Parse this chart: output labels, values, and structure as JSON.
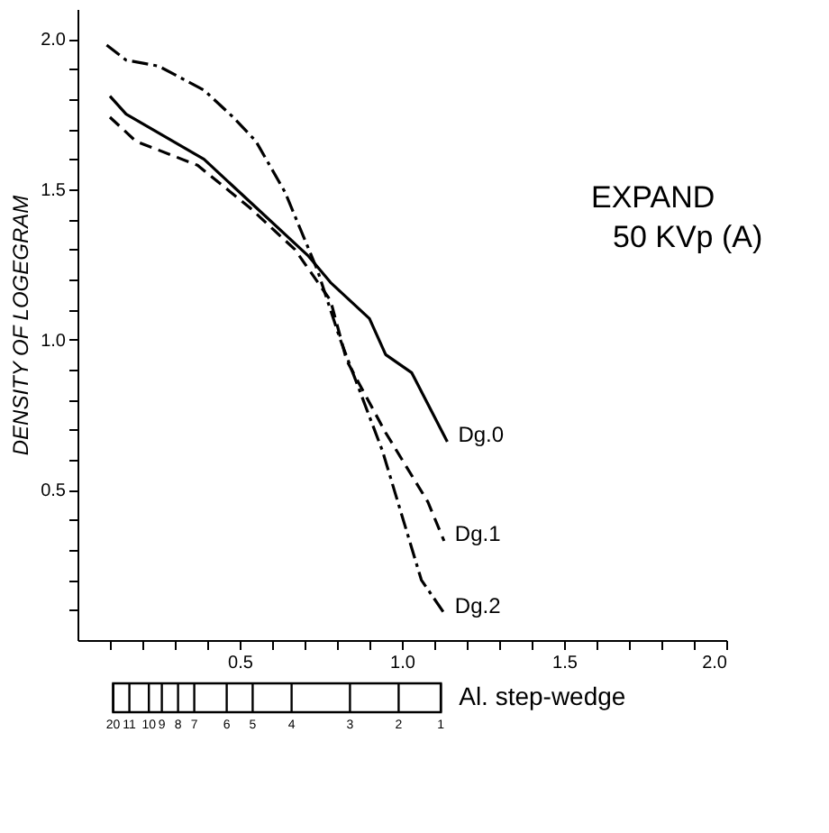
{
  "chart_data": {
    "type": "line",
    "ylabel": "DENSITY OF LOGEGRAM",
    "annotations": [
      "EXPAND",
      "50 KVp (A)",
      "Al. step-wedge",
      "20",
      "11",
      "10",
      "9",
      "8",
      "7",
      "6",
      "5",
      "4",
      "3",
      "2",
      "1"
    ],
    "xlim": [
      0,
      2.0
    ],
    "ylim": [
      0,
      2.1
    ],
    "xticks": [
      {
        "value": 0.1,
        "label": null
      },
      {
        "value": 0.2,
        "label": null
      },
      {
        "value": 0.3,
        "label": null
      },
      {
        "value": 0.4,
        "label": null
      },
      0.5,
      {
        "value": 0.6,
        "label": null
      },
      {
        "value": 0.7,
        "label": null
      },
      {
        "value": 0.8,
        "label": null
      },
      {
        "value": 0.9,
        "label": null
      },
      {
        "value": 1.0,
        "label": "1.0"
      },
      {
        "value": 1.1,
        "label": null
      },
      {
        "value": 1.2,
        "label": null
      },
      {
        "value": 1.3,
        "label": null
      },
      {
        "value": 1.4,
        "label": null
      },
      1.5,
      {
        "value": 1.6,
        "label": null
      },
      {
        "value": 1.7,
        "label": null
      },
      {
        "value": 1.8,
        "label": null
      },
      {
        "value": 1.9,
        "label": null
      },
      {
        "value": 2.0,
        "label": "2.0"
      }
    ],
    "yticks": [
      {
        "value": 0.1,
        "label": null
      },
      {
        "value": 0.2,
        "label": null
      },
      {
        "value": 0.3,
        "label": null
      },
      {
        "value": 0.4,
        "label": null
      },
      0.5,
      {
        "value": 0.6,
        "label": null
      },
      {
        "value": 0.7,
        "label": null
      },
      {
        "value": 0.8,
        "label": null
      },
      {
        "value": 0.9,
        "label": null
      },
      {
        "value": 1.0,
        "label": "1.0"
      },
      {
        "value": 1.1,
        "label": null
      },
      {
        "value": 1.2,
        "label": null
      },
      {
        "value": 1.3,
        "label": null
      },
      {
        "value": 1.4,
        "label": null
      },
      1.5,
      {
        "value": 1.6,
        "label": null
      },
      {
        "value": 1.7,
        "label": null
      },
      {
        "value": 1.8,
        "label": null
      },
      {
        "value": 1.9,
        "label": null
      },
      {
        "value": 2.0,
        "label": "2.0"
      }
    ],
    "grid": false,
    "marker": "none",
    "series": [
      {
        "name": "Dg.2",
        "color": "#000000",
        "line_style": "dashdot",
        "x": [
          0.09,
          0.15,
          0.25,
          0.39,
          0.48,
          0.55,
          0.64,
          0.74,
          0.81,
          0.94,
          1.06,
          1.13
        ],
        "values": [
          1.98,
          1.93,
          1.91,
          1.83,
          1.74,
          1.66,
          1.49,
          1.23,
          1.0,
          0.63,
          0.2,
          0.09
        ]
      },
      {
        "name": "Dg.0",
        "color": "#000000",
        "line_style": "solid",
        "x": [
          0.1,
          0.15,
          0.39,
          0.55,
          0.71,
          0.78,
          0.9,
          0.95,
          1.03,
          1.14
        ],
        "values": [
          1.81,
          1.75,
          1.6,
          1.44,
          1.28,
          1.19,
          1.07,
          0.95,
          0.89,
          0.66
        ]
      },
      {
        "name": "Dg.1",
        "color": "#000000",
        "line_style": "dashed",
        "x": [
          0.1,
          0.18,
          0.37,
          0.53,
          0.67,
          0.78,
          0.83,
          0.95,
          1.08,
          1.13
        ],
        "values": [
          1.74,
          1.66,
          1.58,
          1.44,
          1.3,
          1.13,
          0.93,
          0.69,
          0.46,
          0.33
        ]
      }
    ]
  }
}
